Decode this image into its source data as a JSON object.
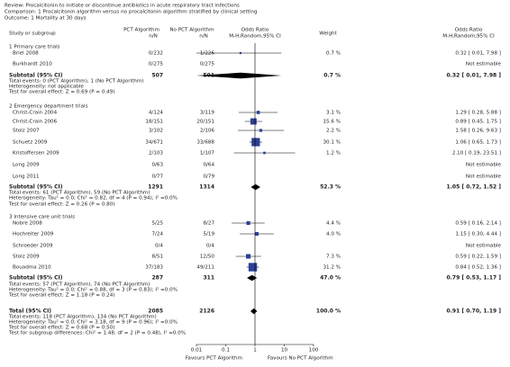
{
  "chart_data": {
    "type": "forest",
    "review": "Review:   Procalcitonin to initiate or discontinue antibiotics in acute respiratory tract infections",
    "comparison": "Comparison:   1 Procalcitonin algorithm versus no procalcitonin algorithm stratified by clinical setting",
    "outcome": "Outcome:   1 Mortality at 30 days",
    "columns": {
      "study": "Study or subgroup",
      "pct": "PCT Algorithm",
      "pct_n": "n/N",
      "nopct": "No PCT Algorithm",
      "nopct_n": "n/N",
      "or": "Odds Ratio",
      "or_method": "M-H,Random,95% CI",
      "weight": "Weight",
      "or2": "Odds Ratio",
      "or2_method": "M-H,Random,95% CI"
    },
    "sections": [
      {
        "title": "1 Primary care trials",
        "studies": [
          {
            "study": "Briel 2008",
            "pct": "0/232",
            "nopct": "1/226",
            "weight": "0.7 %",
            "ci": "0.32 [ 0.01, 7.98 ]",
            "or": 0.32,
            "lo": 0.01,
            "hi": 7.98,
            "w": 0.7
          },
          {
            "study": "Burkhardt 2010",
            "pct": "0/275",
            "nopct": "0/275",
            "ci": "Not estimable"
          }
        ],
        "subtotal": {
          "label": "Subtotal (95% CI)",
          "pct": "507",
          "nopct": "501",
          "weight": "0.7 %",
          "ci": "0.32 [ 0.01, 7.98 ]",
          "or": 0.32,
          "lo": 0.01,
          "hi": 7.98
        },
        "notes": [
          "Total events: 0 (PCT Algorithm), 1 (No PCT Algorithm)",
          "Heterogeneity: not applicable",
          "Test for overall effect: Z = 0.69 (P = 0.49)"
        ]
      },
      {
        "title": "2 Emergency department trials",
        "studies": [
          {
            "study": "Christ-Crain 2004",
            "pct": "4/124",
            "nopct": "3/119",
            "weight": "3.1 %",
            "ci": "1.29 [ 0.28, 5.88 ]",
            "or": 1.29,
            "lo": 0.28,
            "hi": 5.88,
            "w": 3.1
          },
          {
            "study": "Christ-Crain 2006",
            "pct": "18/151",
            "nopct": "20/151",
            "weight": "15.6 %",
            "ci": "0.89 [ 0.45, 1.75 ]",
            "or": 0.89,
            "lo": 0.45,
            "hi": 1.75,
            "w": 15.6
          },
          {
            "study": "Stolz 2007",
            "pct": "3/102",
            "nopct": "2/106",
            "weight": "2.2 %",
            "ci": "1.58 [ 0.26, 9.63 ]",
            "or": 1.58,
            "lo": 0.26,
            "hi": 9.63,
            "w": 2.2
          },
          {
            "study": "Schuetz 2009",
            "pct": "34/671",
            "nopct": "33/688",
            "weight": "30.1 %",
            "ci": "1.06 [ 0.65, 1.73 ]",
            "or": 1.06,
            "lo": 0.65,
            "hi": 1.73,
            "w": 30.1
          },
          {
            "study": "Kristoffersen 2009",
            "pct": "2/103",
            "nopct": "1/107",
            "weight": "1.2 %",
            "ci": "2.10 [ 0.19, 23.51 ]",
            "or": 2.1,
            "lo": 0.19,
            "hi": 23.51,
            "w": 1.2
          },
          {
            "study": "Long 2009",
            "pct": "0/63",
            "nopct": "0/64",
            "ci": "Not estimable"
          },
          {
            "study": "Long 2011",
            "pct": "0/77",
            "nopct": "0/79",
            "ci": "Not estimable"
          }
        ],
        "subtotal": {
          "label": "Subtotal (95% CI)",
          "pct": "1291",
          "nopct": "1314",
          "weight": "52.3 %",
          "ci": "1.05 [ 0.72, 1.52 ]",
          "or": 1.05,
          "lo": 0.72,
          "hi": 1.52
        },
        "notes": [
          "Total events: 61 (PCT Algorithm), 59 (No PCT Algorithm)",
          "Heterogeneity: Tau² = 0.0; Chi² = 0.82, df = 4 (P = 0.94); I² =0.0%",
          "Test for overall effect: Z = 0.26 (P = 0.80)"
        ]
      },
      {
        "title": "3 Intensive care unit trials",
        "studies": [
          {
            "study": "Nobre 2008",
            "pct": "5/25",
            "nopct": "8/27",
            "weight": "4.4 %",
            "ci": "0.59 [ 0.16, 2.14 ]",
            "or": 0.59,
            "lo": 0.16,
            "hi": 2.14,
            "w": 4.4
          },
          {
            "study": "Hochreiter 2009",
            "pct": "7/24",
            "nopct": "5/19",
            "weight": "4.0 %",
            "ci": "1.15 [ 0.30, 4.44 ]",
            "or": 1.15,
            "lo": 0.3,
            "hi": 4.44,
            "w": 4.0
          },
          {
            "study": "Schroeder 2009",
            "pct": "0/4",
            "nopct": "0/4",
            "ci": "Not estimable"
          },
          {
            "study": "Stolz 2009",
            "pct": "8/51",
            "nopct": "12/50",
            "weight": "7.3 %",
            "ci": "0.59 [ 0.22, 1.59 ]",
            "or": 0.59,
            "lo": 0.22,
            "hi": 1.59,
            "w": 7.3
          },
          {
            "study": "Bouadma 2010",
            "pct": "37/183",
            "nopct": "49/211",
            "weight": "31.2 %",
            "ci": "0.84 [ 0.52, 1.36 ]",
            "or": 0.84,
            "lo": 0.52,
            "hi": 1.36,
            "w": 31.2
          }
        ],
        "subtotal": {
          "label": "Subtotal (95% CI)",
          "pct": "287",
          "nopct": "311",
          "weight": "47.0 %",
          "ci": "0.79 [ 0.53, 1.17 ]",
          "or": 0.79,
          "lo": 0.53,
          "hi": 1.17
        },
        "notes": [
          "Total events: 57 (PCT Algorithm), 74 (No PCT Algorithm)",
          "Heterogeneity: Tau² = 0.0; Chi² = 0.88, df = 3 (P = 0.83); I² =0.0%",
          "Test for overall effect: Z = 1.18 (P = 0.24)"
        ]
      }
    ],
    "total": {
      "label": "Total (95% CI)",
      "pct": "2085",
      "nopct": "2126",
      "weight": "100.0 %",
      "ci": "0.91 [ 0.70, 1.19 ]",
      "or": 0.91,
      "lo": 0.7,
      "hi": 1.19,
      "notes": [
        "Total events: 118 (PCT Algorithm), 134 (No PCT Algorithm)",
        "Heterogeneity: Tau² = 0.0; Chi² = 3.18, df = 9 (P = 0.96); I² =0.0%",
        "Test for overall effect: Z = 0.68 (P = 0.50)",
        "Test for subgroup differences: Chi² = 1.48, df = 2 (P = 0.48), I² =0.0%"
      ]
    },
    "xlim": [
      0.01,
      100
    ],
    "xticks": [
      0.01,
      0.1,
      1,
      10,
      100
    ],
    "log": true,
    "marker_color": "#2b3f96",
    "favours_left": "Favours PCT Algorithm",
    "favours_right": "Favours No PCT Algorithm"
  }
}
